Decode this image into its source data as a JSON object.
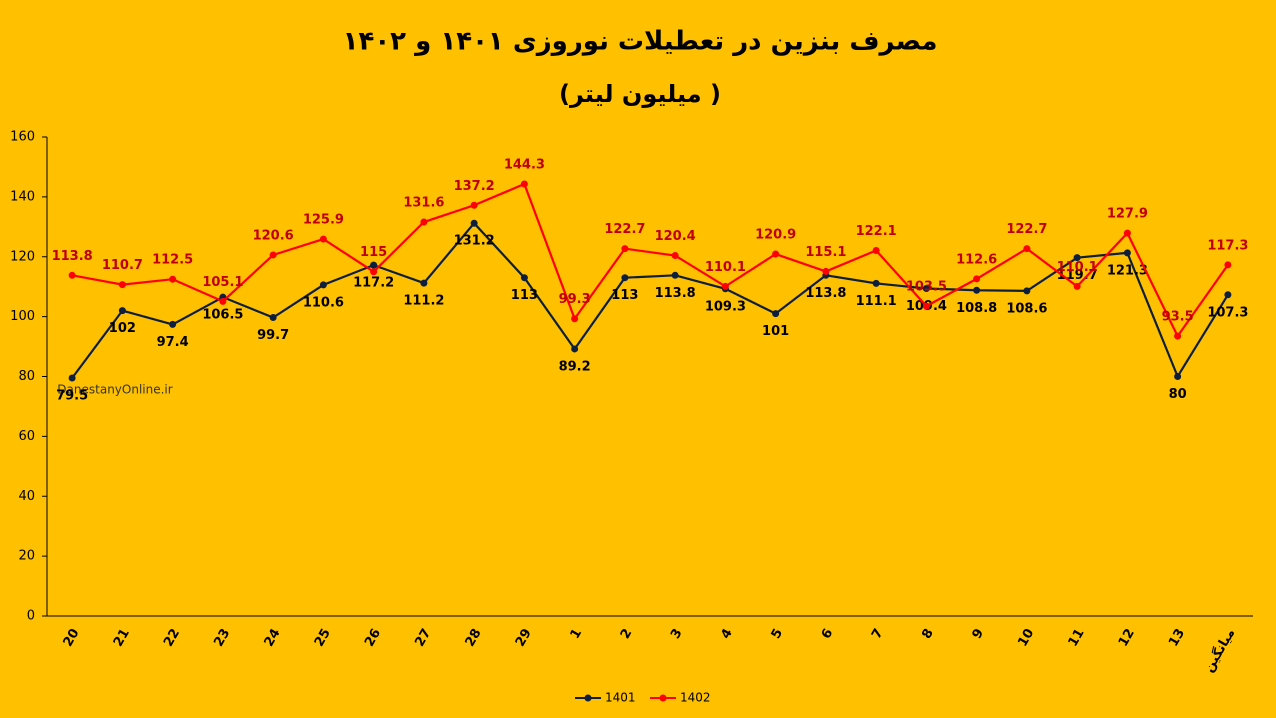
{
  "chart_data": {
    "type": "line",
    "title": "مصرف بنزین در تعطیلات نوروزی ۱۴۰۱ و ۱۴۰۲",
    "subtitle": "(میلیون لیتر )",
    "watermark": "DanestanyOnline.ir",
    "categories": [
      "20",
      "21",
      "22",
      "23",
      "24",
      "25",
      "26",
      "27",
      "28",
      "29",
      "1",
      "2",
      "3",
      "4",
      "5",
      "6",
      "7",
      "8",
      "9",
      "10",
      "11",
      "12",
      "13",
      "میانگین"
    ],
    "series": [
      {
        "name": "1401",
        "color": "#0d1f3c",
        "label_color": "#000000",
        "values": [
          79.5,
          102,
          97.4,
          106.5,
          99.7,
          110.6,
          117.2,
          111.2,
          131.2,
          113,
          89.2,
          113,
          113.8,
          109.3,
          101,
          113.8,
          111.1,
          109.4,
          108.8,
          108.6,
          119.7,
          121.3,
          80,
          107.3
        ]
      },
      {
        "name": "1402",
        "color": "#ff0000",
        "label_color": "#c00000",
        "values": [
          113.8,
          110.7,
          112.5,
          105.1,
          120.6,
          125.9,
          115,
          131.6,
          137.2,
          144.3,
          99.3,
          122.7,
          120.4,
          110.1,
          120.9,
          115.1,
          122.1,
          103.5,
          112.6,
          122.7,
          110.1,
          127.9,
          93.5,
          117.3
        ]
      }
    ],
    "ylim": [
      0,
      160
    ],
    "yticks": [
      0,
      20,
      40,
      60,
      80,
      100,
      120,
      140,
      160
    ],
    "grid": false
  }
}
